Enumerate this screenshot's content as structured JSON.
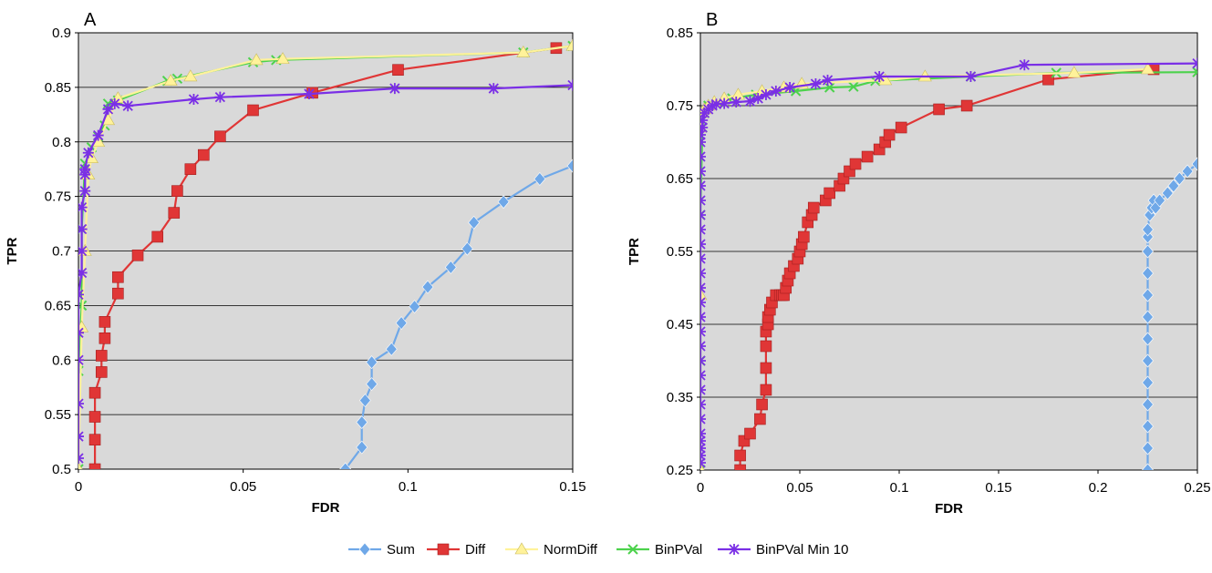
{
  "chart_data": [
    {
      "type": "line",
      "panel_label": "A",
      "xlabel": "FDR",
      "ylabel": "TPR",
      "xlim": [
        0,
        0.15
      ],
      "ylim": [
        0.5,
        0.9
      ],
      "x_ticks": [
        "0",
        "0.05",
        "0.1",
        "0.15"
      ],
      "x_tick_values": [
        0,
        0.05,
        0.1,
        0.15
      ],
      "y_ticks": [
        "0.5",
        "0.55",
        "0.6",
        "0.65",
        "0.7",
        "0.75",
        "0.8",
        "0.85",
        "0.9"
      ],
      "y_tick_values": [
        0.5,
        0.55,
        0.6,
        0.65,
        0.7,
        0.75,
        0.8,
        0.85,
        0.9
      ],
      "grid": "horizontal",
      "series": [
        {
          "name": "Sum",
          "x": [
            0.081,
            0.086,
            0.086,
            0.087,
            0.089,
            0.089,
            0.095,
            0.098,
            0.102,
            0.106,
            0.113,
            0.118,
            0.12,
            0.129,
            0.14,
            0.15
          ],
          "y": [
            0.5,
            0.52,
            0.543,
            0.563,
            0.578,
            0.598,
            0.61,
            0.634,
            0.649,
            0.667,
            0.685,
            0.702,
            0.726,
            0.745,
            0.766,
            0.778
          ]
        },
        {
          "name": "Diff",
          "x": [
            0.005,
            0.005,
            0.005,
            0.005,
            0.007,
            0.007,
            0.008,
            0.008,
            0.012,
            0.012,
            0.018,
            0.024,
            0.029,
            0.03,
            0.034,
            0.038,
            0.043,
            0.053,
            0.071,
            0.097,
            0.145
          ],
          "y": [
            0.5,
            0.527,
            0.548,
            0.57,
            0.589,
            0.604,
            0.62,
            0.635,
            0.661,
            0.676,
            0.696,
            0.713,
            0.735,
            0.755,
            0.775,
            0.788,
            0.805,
            0.829,
            0.845,
            0.866,
            0.886
          ]
        },
        {
          "name": "NormDiff",
          "x": [
            0.0,
            0.001,
            0.002,
            0.003,
            0.004,
            0.006,
            0.009,
            0.012,
            0.028,
            0.034,
            0.054,
            0.062,
            0.135,
            0.15
          ],
          "y": [
            0.5,
            0.63,
            0.7,
            0.77,
            0.785,
            0.8,
            0.82,
            0.84,
            0.856,
            0.86,
            0.875,
            0.876,
            0.882,
            0.888
          ]
        },
        {
          "name": "BinPVal",
          "x": [
            0.0,
            0.0,
            0.001,
            0.001,
            0.002,
            0.004,
            0.006,
            0.008,
            0.009,
            0.012,
            0.027,
            0.03,
            0.053,
            0.06,
            0.135,
            0.15
          ],
          "y": [
            0.5,
            0.59,
            0.65,
            0.72,
            0.78,
            0.795,
            0.805,
            0.815,
            0.835,
            0.838,
            0.856,
            0.858,
            0.873,
            0.875,
            0.882,
            0.888
          ]
        },
        {
          "name": "BinPVal Min 10",
          "x": [
            0.0,
            0.0,
            0.0,
            0.0,
            0.0,
            0.0,
            0.001,
            0.001,
            0.001,
            0.001,
            0.002,
            0.002,
            0.002,
            0.003,
            0.006,
            0.009,
            0.011,
            0.015,
            0.035,
            0.043,
            0.07,
            0.096,
            0.126,
            0.15
          ],
          "y": [
            0.51,
            0.53,
            0.56,
            0.6,
            0.625,
            0.66,
            0.68,
            0.7,
            0.72,
            0.74,
            0.755,
            0.77,
            0.775,
            0.79,
            0.806,
            0.83,
            0.835,
            0.833,
            0.839,
            0.841,
            0.844,
            0.849,
            0.849,
            0.852
          ]
        }
      ]
    },
    {
      "type": "line",
      "panel_label": "B",
      "xlabel": "FDR",
      "ylabel": "TPR",
      "xlim": [
        0,
        0.25
      ],
      "ylim": [
        0.25,
        0.85
      ],
      "x_ticks": [
        "0",
        "0.05",
        "0.1",
        "0.15",
        "0.2",
        "0.25"
      ],
      "x_tick_values": [
        0,
        0.05,
        0.1,
        0.15,
        0.2,
        0.25
      ],
      "y_ticks": [
        "0.25",
        "0.35",
        "0.45",
        "0.55",
        "0.65",
        "0.75",
        "0.85"
      ],
      "y_tick_values": [
        0.25,
        0.35,
        0.45,
        0.55,
        0.65,
        0.75,
        0.85
      ],
      "grid": "horizontal",
      "series": [
        {
          "name": "Sum",
          "x": [
            0.225,
            0.225,
            0.225,
            0.225,
            0.225,
            0.225,
            0.225,
            0.225,
            0.225,
            0.225,
            0.225,
            0.225,
            0.225,
            0.226,
            0.227,
            0.228,
            0.229,
            0.231,
            0.235,
            0.238,
            0.241,
            0.245,
            0.25
          ],
          "y": [
            0.25,
            0.28,
            0.31,
            0.34,
            0.37,
            0.4,
            0.43,
            0.46,
            0.49,
            0.52,
            0.55,
            0.57,
            0.58,
            0.6,
            0.61,
            0.62,
            0.61,
            0.62,
            0.63,
            0.64,
            0.65,
            0.66,
            0.67
          ]
        },
        {
          "name": "Diff",
          "x": [
            0.02,
            0.02,
            0.022,
            0.025,
            0.03,
            0.031,
            0.033,
            0.033,
            0.033,
            0.033,
            0.034,
            0.034,
            0.035,
            0.036,
            0.038,
            0.04,
            0.041,
            0.042,
            0.043,
            0.044,
            0.045,
            0.047,
            0.049,
            0.05,
            0.051,
            0.052,
            0.054,
            0.056,
            0.057,
            0.063,
            0.065,
            0.07,
            0.072,
            0.075,
            0.078,
            0.084,
            0.09,
            0.093,
            0.095,
            0.101,
            0.12,
            0.134,
            0.175,
            0.228
          ],
          "y": [
            0.25,
            0.27,
            0.29,
            0.3,
            0.32,
            0.34,
            0.36,
            0.39,
            0.42,
            0.44,
            0.45,
            0.46,
            0.47,
            0.48,
            0.49,
            0.49,
            0.49,
            0.49,
            0.5,
            0.51,
            0.52,
            0.53,
            0.54,
            0.55,
            0.56,
            0.57,
            0.59,
            0.6,
            0.61,
            0.62,
            0.63,
            0.64,
            0.65,
            0.66,
            0.67,
            0.68,
            0.69,
            0.7,
            0.71,
            0.72,
            0.745,
            0.75,
            0.786,
            0.8
          ]
        },
        {
          "name": "NormDiff",
          "x": [
            0.0,
            0.0,
            0.0,
            0.001,
            0.002,
            0.004,
            0.007,
            0.012,
            0.019,
            0.031,
            0.042,
            0.051,
            0.093,
            0.113,
            0.188,
            0.225
          ],
          "y": [
            0.25,
            0.49,
            0.72,
            0.74,
            0.745,
            0.75,
            0.755,
            0.76,
            0.765,
            0.77,
            0.775,
            0.78,
            0.785,
            0.79,
            0.795,
            0.8
          ]
        },
        {
          "name": "BinPVal",
          "x": [
            0.0,
            0.0,
            0.0,
            0.001,
            0.002,
            0.004,
            0.009,
            0.016,
            0.028,
            0.048,
            0.065,
            0.077,
            0.088,
            0.136,
            0.179,
            0.25
          ],
          "y": [
            0.25,
            0.4,
            0.6,
            0.72,
            0.74,
            0.75,
            0.755,
            0.76,
            0.765,
            0.77,
            0.775,
            0.776,
            0.784,
            0.79,
            0.795,
            0.796
          ]
        },
        {
          "name": "BinPVal Min 10",
          "x": [
            0.0,
            0.0,
            0.0,
            0.0,
            0.0,
            0.0,
            0.0,
            0.0,
            0.0,
            0.0,
            0.0,
            0.0,
            0.0,
            0.0,
            0.0,
            0.0,
            0.0,
            0.0,
            0.0,
            0.0,
            0.0,
            0.0,
            0.0,
            0.0,
            0.0,
            0.0,
            0.001,
            0.001,
            0.002,
            0.004,
            0.006,
            0.008,
            0.012,
            0.018,
            0.025,
            0.029,
            0.033,
            0.038,
            0.045,
            0.058,
            0.064,
            0.09,
            0.136,
            0.163,
            0.25
          ],
          "y": [
            0.26,
            0.27,
            0.28,
            0.29,
            0.3,
            0.32,
            0.34,
            0.36,
            0.38,
            0.4,
            0.42,
            0.44,
            0.46,
            0.48,
            0.5,
            0.52,
            0.54,
            0.56,
            0.58,
            0.6,
            0.62,
            0.64,
            0.66,
            0.68,
            0.7,
            0.71,
            0.72,
            0.73,
            0.74,
            0.745,
            0.75,
            0.752,
            0.753,
            0.755,
            0.756,
            0.76,
            0.765,
            0.77,
            0.775,
            0.78,
            0.785,
            0.79,
            0.79,
            0.806,
            0.808
          ]
        }
      ]
    }
  ],
  "legend": {
    "placement": "bottom-center",
    "items": [
      "Sum",
      "Diff",
      "NormDiff",
      "BinPVal",
      "BinPVal Min 10"
    ]
  },
  "styles": {
    "plot_background": "#d9d9d9",
    "grid_color": "#000000",
    "series_colors": {
      "Sum": "#6fa8e8",
      "Diff": "#e03636",
      "NormDiff": "#fff29a",
      "BinPVal": "#4cd24c",
      "BinPVal Min 10": "#7a2fe6"
    },
    "series_markers": {
      "Sum": "diamond",
      "Diff": "square",
      "NormDiff": "triangle",
      "BinPVal": "x",
      "BinPVal Min 10": "asterisk"
    }
  }
}
